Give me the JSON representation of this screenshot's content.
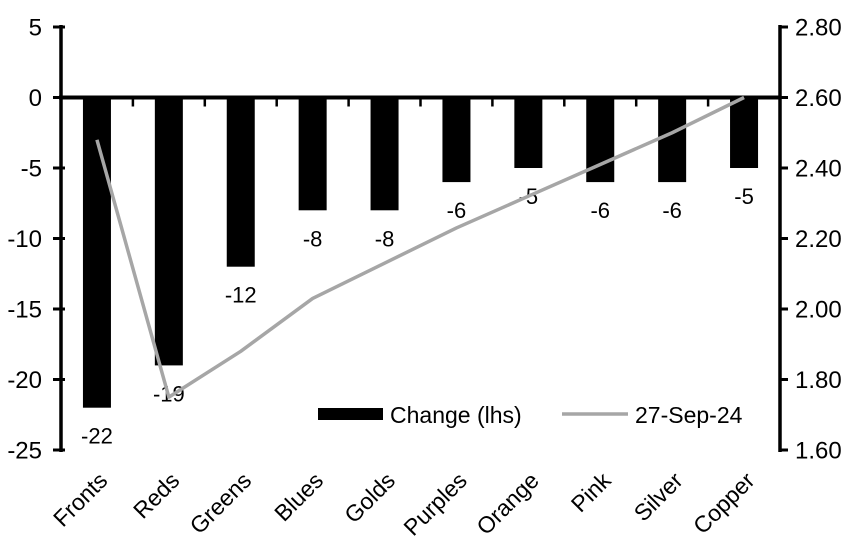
{
  "chart_data": {
    "type": "combo_bar_line",
    "title": "",
    "background": "#ffffff",
    "grid": false,
    "categories": [
      "Fronts",
      "Reds",
      "Greens",
      "Blues",
      "Golds",
      "Purples",
      "Orange",
      "Pink",
      "Silver",
      "Copper"
    ],
    "series": [
      {
        "name": "Change (lhs)",
        "type": "bar",
        "axis": "left",
        "color": "#000000",
        "values": [
          -22,
          -19,
          -12,
          -8,
          -8,
          -6,
          -5,
          -6,
          -6,
          -5
        ],
        "labels": [
          "-22",
          "-19",
          "-12",
          "-8",
          "-8",
          "-6",
          "-5",
          "-6",
          "-6",
          "-5"
        ]
      },
      {
        "name": "27-Sep-24",
        "type": "line",
        "axis": "right",
        "color": "#a6a6a6",
        "values": [
          2.48,
          1.75,
          1.88,
          2.03,
          2.13,
          2.23,
          2.32,
          2.41,
          2.5,
          2.6
        ]
      }
    ],
    "left_axis": {
      "min": -25,
      "max": 5,
      "step": 5,
      "tick_values": [
        5,
        0,
        -5,
        -10,
        -15,
        -20,
        -25
      ],
      "tick_labels": [
        "5",
        "0",
        "-5",
        "-10",
        "-15",
        "-20",
        "-25"
      ]
    },
    "right_axis": {
      "min": 1.6,
      "max": 2.8,
      "step": 0.2,
      "tick_values": [
        2.8,
        2.6,
        2.4,
        2.2,
        2.0,
        1.8,
        1.6
      ],
      "tick_labels": [
        "2.80",
        "2.60",
        "2.40",
        "2.20",
        "2.00",
        "1.80",
        "1.60"
      ]
    },
    "axis_color": "#000000",
    "legend": {
      "position": "bottom-inside",
      "entries": [
        "Change (lhs)",
        "27-Sep-24"
      ]
    }
  }
}
